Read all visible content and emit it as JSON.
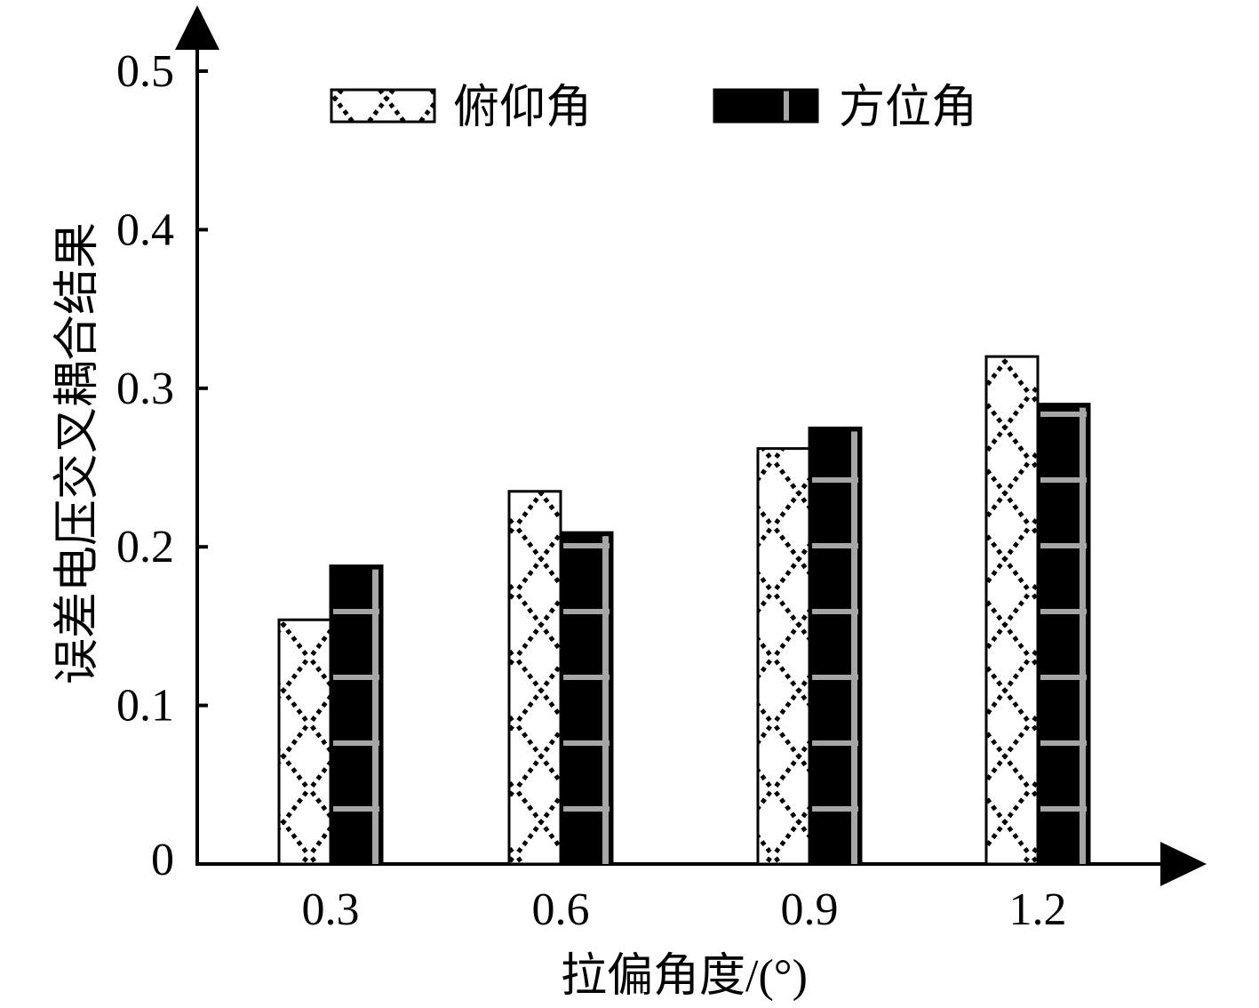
{
  "chart_data": {
    "type": "bar",
    "title": "",
    "xlabel": "拉偏角度/(°)",
    "ylabel": "误差电压交叉耦合结果",
    "categories": [
      "0.3",
      "0.6",
      "0.9",
      "1.2"
    ],
    "series": [
      {
        "name": "俯仰角",
        "values": [
          0.154,
          0.235,
          0.262,
          0.32
        ],
        "pattern": "crosshatch-white"
      },
      {
        "name": "方位角",
        "values": [
          0.188,
          0.209,
          0.275,
          0.29
        ],
        "pattern": "black-gray-ladder"
      }
    ],
    "ylim": [
      0,
      0.5
    ],
    "yticks": [
      "0",
      "0.1",
      "0.2",
      "0.3",
      "0.4",
      "0.5"
    ],
    "grid": false,
    "legend_position": "top",
    "colors": {
      "axis": "#000000",
      "bar_dark": "#000000",
      "bar_light": "#ffffff",
      "ladder": "#a6a6a6"
    }
  }
}
